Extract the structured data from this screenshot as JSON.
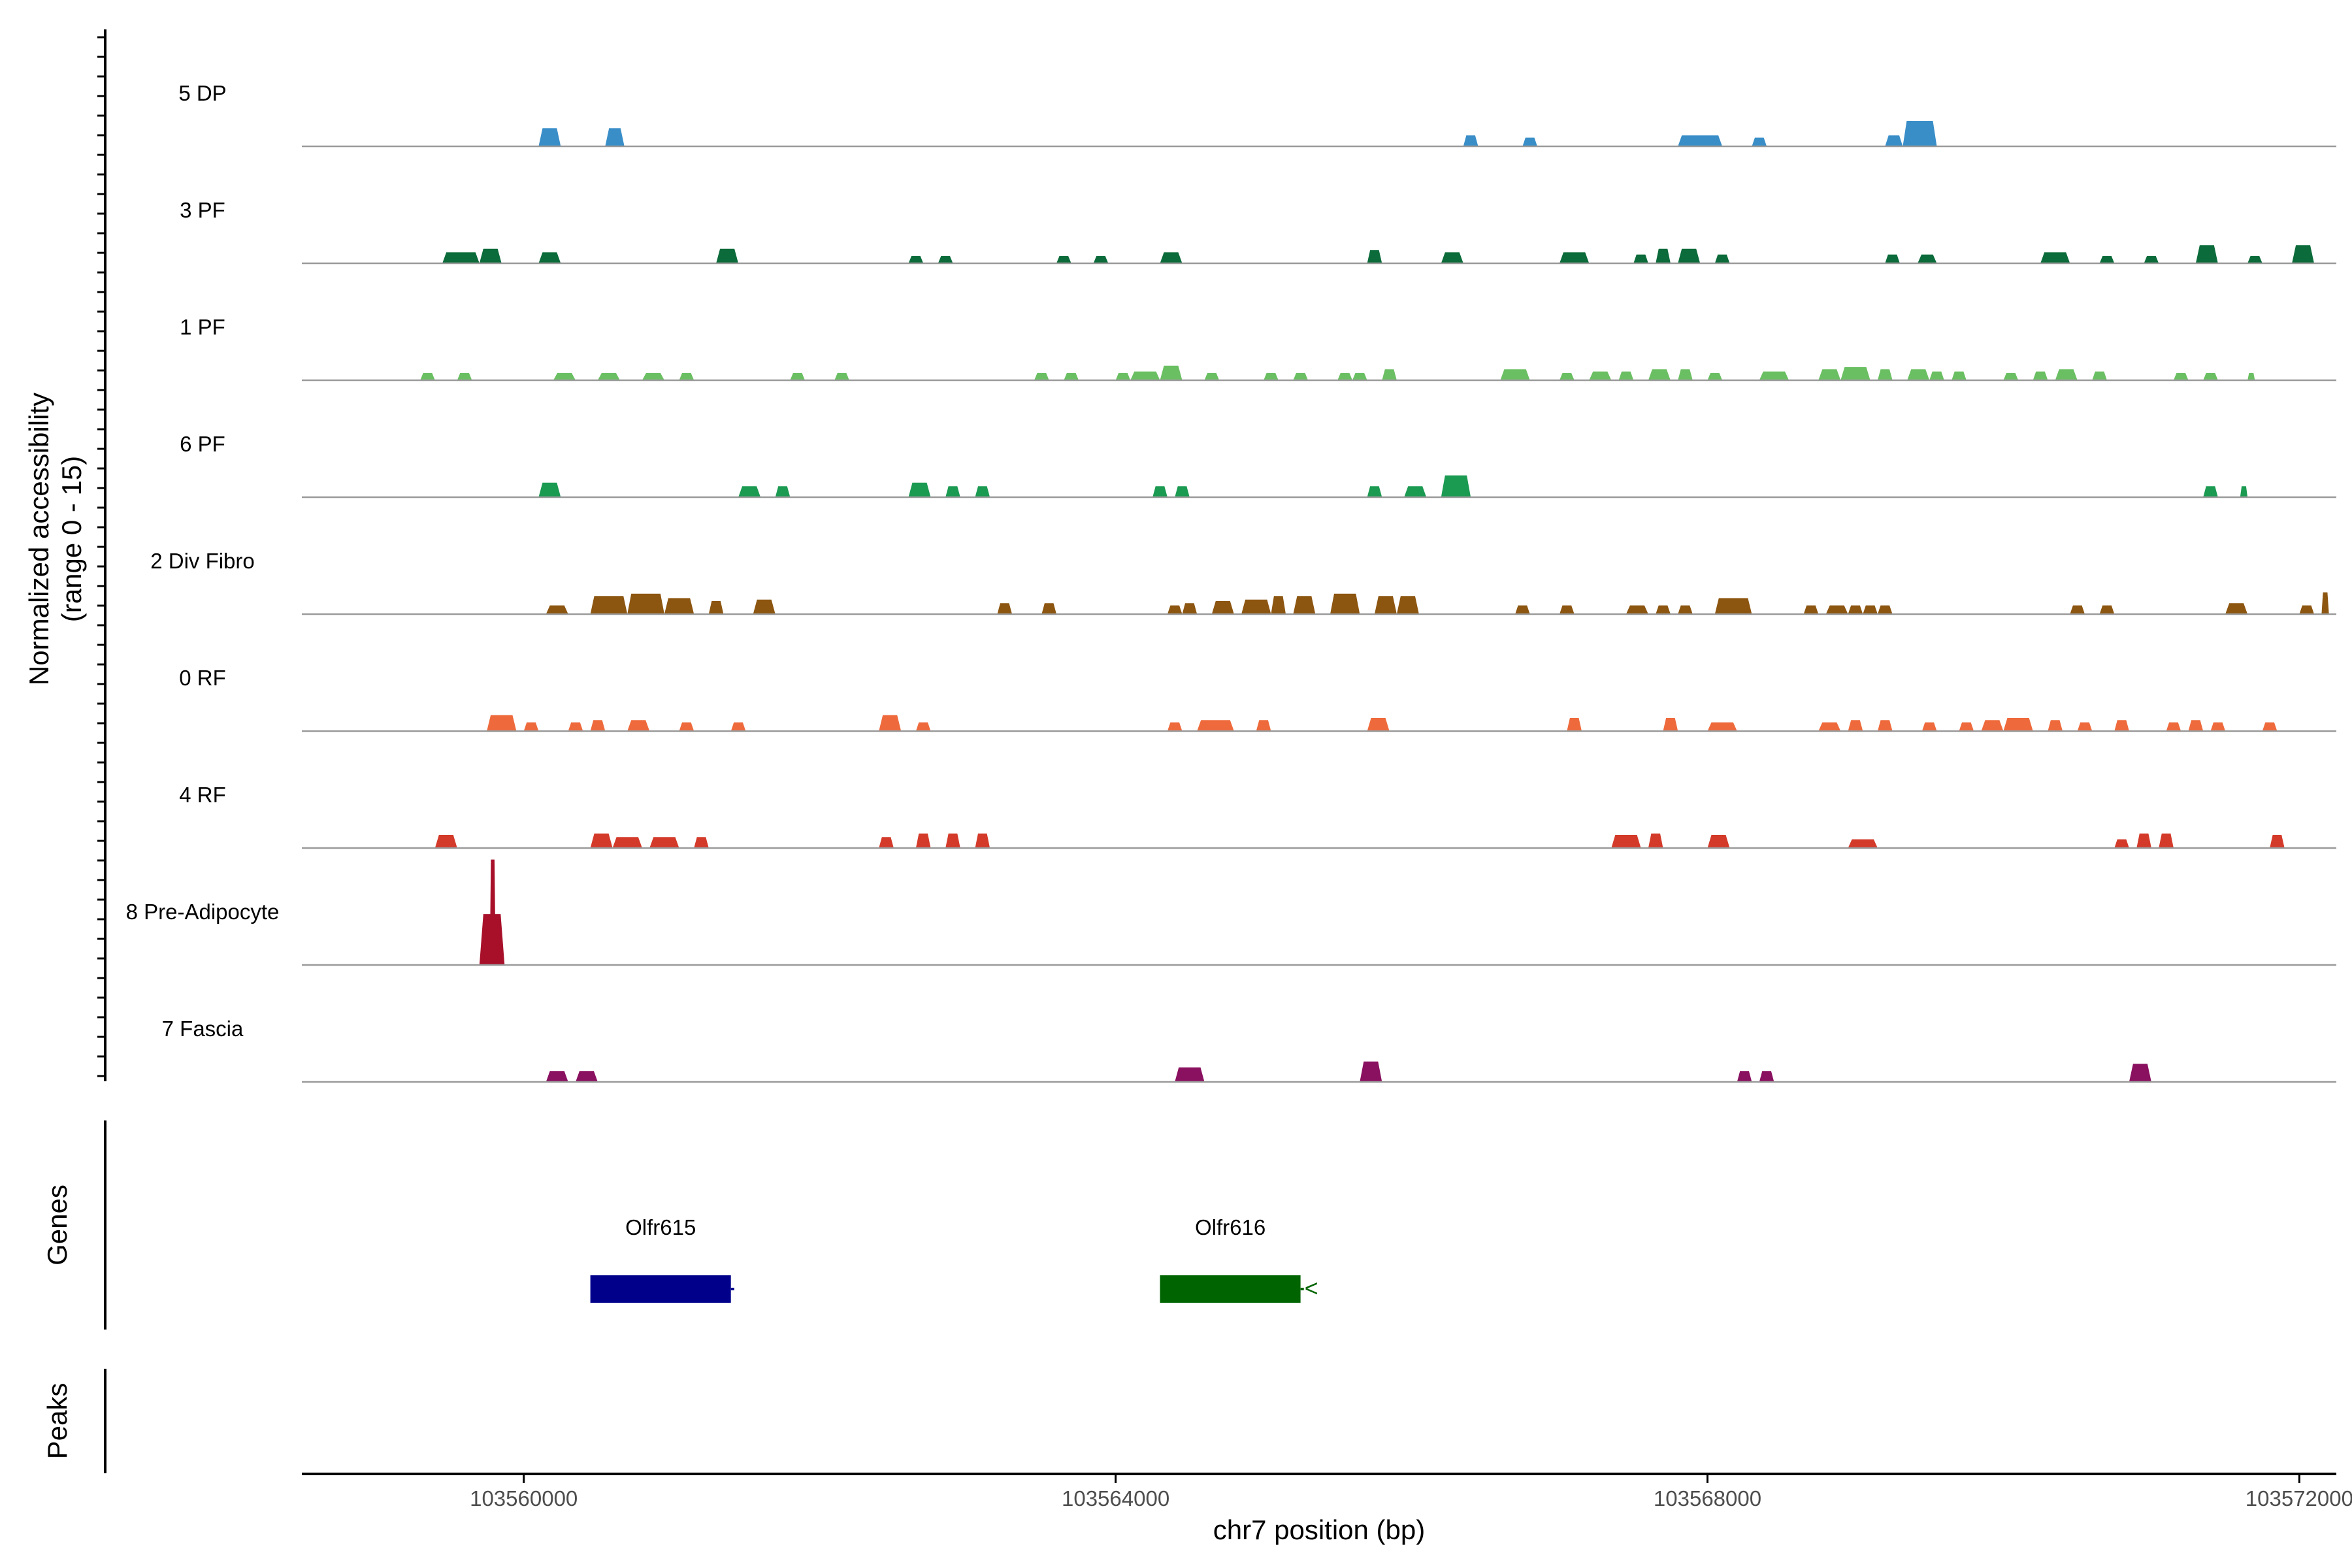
{
  "chart_data": {
    "type": "area",
    "ylabel_line1": "Normalized accessibility",
    "ylabel_line2": "(range 0 - 15)",
    "xlabel": "chr7 position (bp)",
    "xlim": [
      103558500,
      103572250
    ],
    "x_ticks": [
      103560000,
      103564000,
      103568000,
      103572000
    ],
    "x_tick_labels": [
      "103560000",
      "103564000",
      "103568000",
      "103572000"
    ],
    "ylim": [
      0,
      15
    ],
    "genes_label": "Genes",
    "peaks_label": "Peaks",
    "series": [
      {
        "name": "5 DP",
        "color": "#3a8ec8",
        "blocks": [
          [
            103560100,
            103560250,
            2.5
          ],
          [
            103560550,
            103560680,
            2.5
          ],
          [
            103566350,
            103566450,
            1.5
          ],
          [
            103566750,
            103566850,
            1.2
          ],
          [
            103567800,
            103568100,
            1.5
          ],
          [
            103568300,
            103568400,
            1.2
          ],
          [
            103569200,
            103569320,
            1.5
          ],
          [
            103569320,
            103569550,
            3.5
          ]
        ]
      },
      {
        "name": "3 PF",
        "color": "#0b6b3a",
        "blocks": [
          [
            103559450,
            103559700,
            1.5
          ],
          [
            103559700,
            103559850,
            2.0
          ],
          [
            103560100,
            103560250,
            1.5
          ],
          [
            103561300,
            103561450,
            2.0
          ],
          [
            103562600,
            103562700,
            1.0
          ],
          [
            103562800,
            103562900,
            1.0
          ],
          [
            103563600,
            103563700,
            1.0
          ],
          [
            103563850,
            103563950,
            1.0
          ],
          [
            103564300,
            103564450,
            1.5
          ],
          [
            103565700,
            103565800,
            1.8
          ],
          [
            103566200,
            103566350,
            1.5
          ],
          [
            103567000,
            103567200,
            1.5
          ],
          [
            103567500,
            103567600,
            1.2
          ],
          [
            103567650,
            103567750,
            2.0
          ],
          [
            103567800,
            103567950,
            2.0
          ],
          [
            103568050,
            103568150,
            1.2
          ],
          [
            103569200,
            103569300,
            1.2
          ],
          [
            103569420,
            103569550,
            1.2
          ],
          [
            103570250,
            103570450,
            1.5
          ],
          [
            103570650,
            103570750,
            1.0
          ],
          [
            103570950,
            103571050,
            1.0
          ],
          [
            103571300,
            103571450,
            2.5
          ],
          [
            103571650,
            103571750,
            1.0
          ],
          [
            103571950,
            103572100,
            2.5
          ]
        ]
      },
      {
        "name": "1 PF",
        "color": "#6bbf63",
        "blocks": [
          [
            103559300,
            103559400,
            1.0
          ],
          [
            103559550,
            103559650,
            1.0
          ],
          [
            103560200,
            103560350,
            1.0
          ],
          [
            103560500,
            103560650,
            1.0
          ],
          [
            103560800,
            103560950,
            1.0
          ],
          [
            103561050,
            103561150,
            1.0
          ],
          [
            103561800,
            103561900,
            1.0
          ],
          [
            103562100,
            103562200,
            1.0
          ],
          [
            103563450,
            103563550,
            1.0
          ],
          [
            103563650,
            103563750,
            1.0
          ],
          [
            103564000,
            103564100,
            1.0
          ],
          [
            103564100,
            103564300,
            1.2
          ],
          [
            103564300,
            103564450,
            2.0
          ],
          [
            103564600,
            103564700,
            1.0
          ],
          [
            103565000,
            103565100,
            1.0
          ],
          [
            103565200,
            103565300,
            1.0
          ],
          [
            103565500,
            103565600,
            1.0
          ],
          [
            103565600,
            103565700,
            1.0
          ],
          [
            103565800,
            103565900,
            1.5
          ],
          [
            103566600,
            103566800,
            1.5
          ],
          [
            103567000,
            103567100,
            1.0
          ],
          [
            103567200,
            103567350,
            1.2
          ],
          [
            103567400,
            103567500,
            1.2
          ],
          [
            103567600,
            103567750,
            1.5
          ],
          [
            103567800,
            103567900,
            1.5
          ],
          [
            103568000,
            103568100,
            1.0
          ],
          [
            103568350,
            103568550,
            1.2
          ],
          [
            103568750,
            103568900,
            1.5
          ],
          [
            103568900,
            103569100,
            1.8
          ],
          [
            103569150,
            103569250,
            1.5
          ],
          [
            103569350,
            103569500,
            1.5
          ],
          [
            103569500,
            103569600,
            1.2
          ],
          [
            103569650,
            103569750,
            1.2
          ],
          [
            103570000,
            103570100,
            1.0
          ],
          [
            103570200,
            103570300,
            1.2
          ],
          [
            103570350,
            103570500,
            1.5
          ],
          [
            103570600,
            103570700,
            1.2
          ],
          [
            103571150,
            103571250,
            1.0
          ],
          [
            103571350,
            103571450,
            1.0
          ],
          [
            103571650,
            103571700,
            1.0
          ]
        ]
      },
      {
        "name": "6 PF",
        "color": "#1b9a52",
        "blocks": [
          [
            103560100,
            103560250,
            2.0
          ],
          [
            103561450,
            103561600,
            1.5
          ],
          [
            103561700,
            103561800,
            1.5
          ],
          [
            103562600,
            103562750,
            2.0
          ],
          [
            103562850,
            103562950,
            1.5
          ],
          [
            103563050,
            103563150,
            1.5
          ],
          [
            103564250,
            103564350,
            1.5
          ],
          [
            103564400,
            103564500,
            1.5
          ],
          [
            103565700,
            103565800,
            1.5
          ],
          [
            103565950,
            103566100,
            1.5
          ],
          [
            103566200,
            103566400,
            3.0
          ],
          [
            103571350,
            103571450,
            1.5
          ],
          [
            103571600,
            103571650,
            1.5
          ]
        ]
      },
      {
        "name": "2 Div Fibro",
        "color": "#8c5510",
        "blocks": [
          [
            103560150,
            103560300,
            1.2
          ],
          [
            103560450,
            103560700,
            2.5
          ],
          [
            103560700,
            103560950,
            2.8
          ],
          [
            103560950,
            103561150,
            2.2
          ],
          [
            103561250,
            103561350,
            1.8
          ],
          [
            103561550,
            103561700,
            2.0
          ],
          [
            103563200,
            103563300,
            1.5
          ],
          [
            103563500,
            103563600,
            1.5
          ],
          [
            103564350,
            103564450,
            1.2
          ],
          [
            103564450,
            103564550,
            1.5
          ],
          [
            103564650,
            103564800,
            1.8
          ],
          [
            103564850,
            103565050,
            2.0
          ],
          [
            103565050,
            103565150,
            2.5
          ],
          [
            103565200,
            103565350,
            2.5
          ],
          [
            103565450,
            103565650,
            2.8
          ],
          [
            103565750,
            103565900,
            2.5
          ],
          [
            103565900,
            103566050,
            2.5
          ],
          [
            103566700,
            103566800,
            1.2
          ],
          [
            103567000,
            103567100,
            1.2
          ],
          [
            103567450,
            103567600,
            1.2
          ],
          [
            103567650,
            103567750,
            1.2
          ],
          [
            103567800,
            103567900,
            1.2
          ],
          [
            103568050,
            103568300,
            2.2
          ],
          [
            103568650,
            103568750,
            1.2
          ],
          [
            103568800,
            103568950,
            1.2
          ],
          [
            103568950,
            103569050,
            1.2
          ],
          [
            103569050,
            103569150,
            1.2
          ],
          [
            103569150,
            103569250,
            1.2
          ],
          [
            103570450,
            103570550,
            1.2
          ],
          [
            103570650,
            103570750,
            1.2
          ],
          [
            103571500,
            103571650,
            1.5
          ],
          [
            103572000,
            103572100,
            1.2
          ],
          [
            103572150,
            103572200,
            3.0
          ]
        ]
      },
      {
        "name": "0 RF",
        "color": "#ee6a3c",
        "blocks": [
          [
            103559750,
            103559950,
            2.2
          ],
          [
            103560000,
            103560100,
            1.2
          ],
          [
            103560300,
            103560400,
            1.2
          ],
          [
            103560450,
            103560550,
            1.5
          ],
          [
            103560700,
            103560850,
            1.5
          ],
          [
            103561050,
            103561150,
            1.2
          ],
          [
            103561400,
            103561500,
            1.2
          ],
          [
            103562400,
            103562550,
            2.2
          ],
          [
            103562650,
            103562750,
            1.2
          ],
          [
            103564350,
            103564450,
            1.2
          ],
          [
            103564550,
            103564800,
            1.5
          ],
          [
            103564950,
            103565050,
            1.5
          ],
          [
            103565700,
            103565850,
            1.8
          ],
          [
            103567050,
            103567150,
            1.8
          ],
          [
            103567700,
            103567800,
            1.8
          ],
          [
            103568000,
            103568200,
            1.2
          ],
          [
            103568750,
            103568900,
            1.2
          ],
          [
            103568950,
            103569050,
            1.5
          ],
          [
            103569150,
            103569250,
            1.5
          ],
          [
            103569450,
            103569550,
            1.2
          ],
          [
            103569700,
            103569800,
            1.2
          ],
          [
            103569850,
            103570000,
            1.5
          ],
          [
            103570000,
            103570200,
            1.8
          ],
          [
            103570300,
            103570400,
            1.5
          ],
          [
            103570500,
            103570600,
            1.2
          ],
          [
            103570750,
            103570850,
            1.5
          ],
          [
            103571100,
            103571200,
            1.2
          ],
          [
            103571250,
            103571350,
            1.5
          ],
          [
            103571400,
            103571500,
            1.2
          ],
          [
            103571750,
            103571850,
            1.2
          ]
        ]
      },
      {
        "name": "4 RF",
        "color": "#d43a2a",
        "blocks": [
          [
            103559400,
            103559550,
            1.8
          ],
          [
            103560450,
            103560600,
            2.0
          ],
          [
            103560600,
            103560800,
            1.5
          ],
          [
            103560850,
            103561050,
            1.5
          ],
          [
            103561150,
            103561250,
            1.5
          ],
          [
            103562400,
            103562500,
            1.5
          ],
          [
            103562650,
            103562750,
            2.0
          ],
          [
            103562850,
            103562950,
            2.0
          ],
          [
            103563050,
            103563150,
            2.0
          ],
          [
            103567350,
            103567550,
            1.8
          ],
          [
            103567600,
            103567700,
            2.0
          ],
          [
            103568000,
            103568150,
            1.8
          ],
          [
            103568950,
            103569150,
            1.2
          ],
          [
            103570750,
            103570850,
            1.2
          ],
          [
            103570900,
            103571000,
            2.0
          ],
          [
            103571050,
            103571150,
            2.0
          ],
          [
            103571800,
            103571900,
            1.8
          ]
        ]
      },
      {
        "name": "8 Pre-Adipocyte",
        "color": "#a8102a",
        "blocks": [
          [
            103559700,
            103559870,
            7.0
          ],
          [
            103559770,
            103559810,
            14.5
          ]
        ]
      },
      {
        "name": "7 Fascia",
        "color": "#8a1060",
        "blocks": [
          [
            103560150,
            103560300,
            1.5
          ],
          [
            103560350,
            103560500,
            1.5
          ],
          [
            103564400,
            103564600,
            2.0
          ],
          [
            103565650,
            103565800,
            2.8
          ],
          [
            103568200,
            103568300,
            1.5
          ],
          [
            103568350,
            103568450,
            1.5
          ],
          [
            103570850,
            103571000,
            2.5
          ]
        ]
      }
    ],
    "genes": [
      {
        "name": "Olfr615",
        "start": 103560450,
        "end": 103561400,
        "color": "#00008b",
        "strand_mark": ""
      },
      {
        "name": "Olfr616",
        "start": 103564300,
        "end": 103565250,
        "color": "#006400",
        "strand_mark": "<"
      }
    ]
  }
}
